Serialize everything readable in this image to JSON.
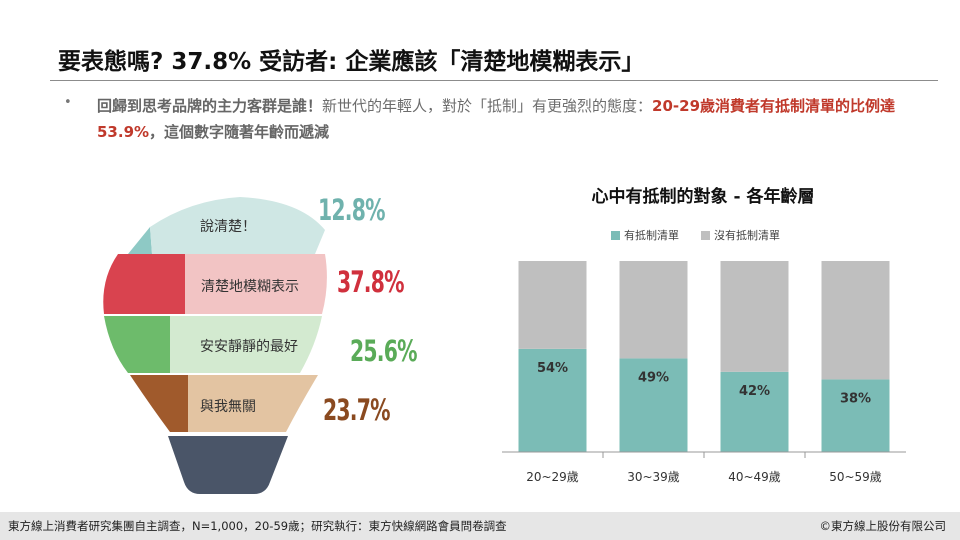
{
  "title": "要表態嗎? 37.8% 受訪者: 企業應該「清楚地模糊表示」",
  "description": {
    "bullet": "•",
    "part1": "回歸到思考品牌的主力客群是誰！",
    "part2": "新世代的年輕人，對於「抵制」有更強烈的態度：",
    "part3": "20-29歲消費者有抵制清單的比例達53.9%",
    "part4": "，這個數字隨著年齡而遞減"
  },
  "bulb": {
    "items": [
      {
        "label": "說清楚！",
        "pct": "12.8%",
        "color": "#8ec9c5"
      },
      {
        "label": "清楚地模糊表示",
        "pct": "37.8%",
        "color": "#d9434f"
      },
      {
        "label": "安安靜靜的最好",
        "pct": "25.6%",
        "color": "#6dbb6b"
      },
      {
        "label": "與我無關",
        "pct": "23.7%",
        "color": "#a05a2c"
      }
    ]
  },
  "chart_data": {
    "type": "bar",
    "stacked": true,
    "title": "心中有抵制的對象 - 各年齡層",
    "categories": [
      "20~29歲",
      "30~39歲",
      "40~49歲",
      "50~59歲"
    ],
    "series": [
      {
        "name": "有抵制清單",
        "values": [
          54,
          49,
          42,
          38
        ],
        "color": "#7bbcb6"
      },
      {
        "name": "沒有抵制清單",
        "values": [
          46,
          51,
          58,
          62
        ],
        "color": "#bfbfbf"
      }
    ],
    "data_labels": [
      "54%",
      "49%",
      "42%",
      "38%"
    ],
    "ylim": [
      0,
      100
    ],
    "legend": "top",
    "grid": false
  },
  "footer": {
    "source": "東方線上消費者研究集團自主調查，N=1,000，20-59歲；研究執行：東方快線網路會員問卷調查",
    "copyright": "©東方線上股份有限公司"
  }
}
